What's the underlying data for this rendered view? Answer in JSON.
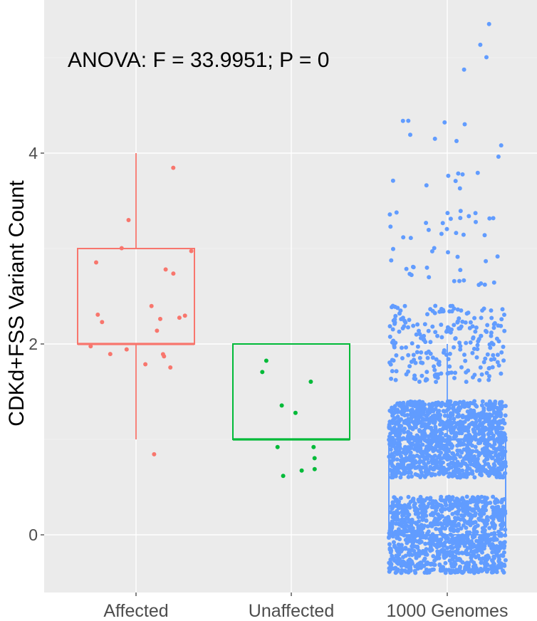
{
  "chart_data": {
    "type": "boxplot",
    "annotation": "ANOVA: F = 33.9951; P = 0",
    "xlabel": "",
    "ylabel": "CDKd+FSS Variant Count",
    "ylim": [
      -0.6,
      5.3
    ],
    "yticks": [
      0,
      2,
      4
    ],
    "ytick_labels": [
      "0",
      "2",
      "4"
    ],
    "grid": true,
    "categories": [
      "Affected",
      "Unaffected",
      "1000 Genomes"
    ],
    "colors": {
      "Affected": "#f8766d",
      "Unaffected": "#00ba38",
      "1000 Genomes": "#619cff"
    },
    "panel_background": "#ebebeb",
    "boxes": [
      {
        "group": "Affected",
        "min": 1,
        "q1": 2,
        "median": 2,
        "q3": 3,
        "max": 4
      },
      {
        "group": "Unaffected",
        "min": 1,
        "q1": 1,
        "median": 1,
        "q3": 2,
        "max": 2
      },
      {
        "group": "1000 Genomes",
        "min": 0,
        "q1": 0,
        "median": 1,
        "q3": 1,
        "max": 2,
        "outliers": [
          3,
          4,
          5
        ]
      }
    ],
    "counts_per_value": {
      "Affected": {
        "1": 1,
        "2": 14,
        "3": 6,
        "4": 1
      },
      "Unaffected": {
        "1": 8,
        "2": 3
      },
      "1000 Genomes": {
        "0": 1100,
        "1": 1200,
        "2": 230,
        "3": 45,
        "4": 17,
        "5": 4
      }
    },
    "jitter": {
      "x": 0.4,
      "y": 0.4
    }
  }
}
